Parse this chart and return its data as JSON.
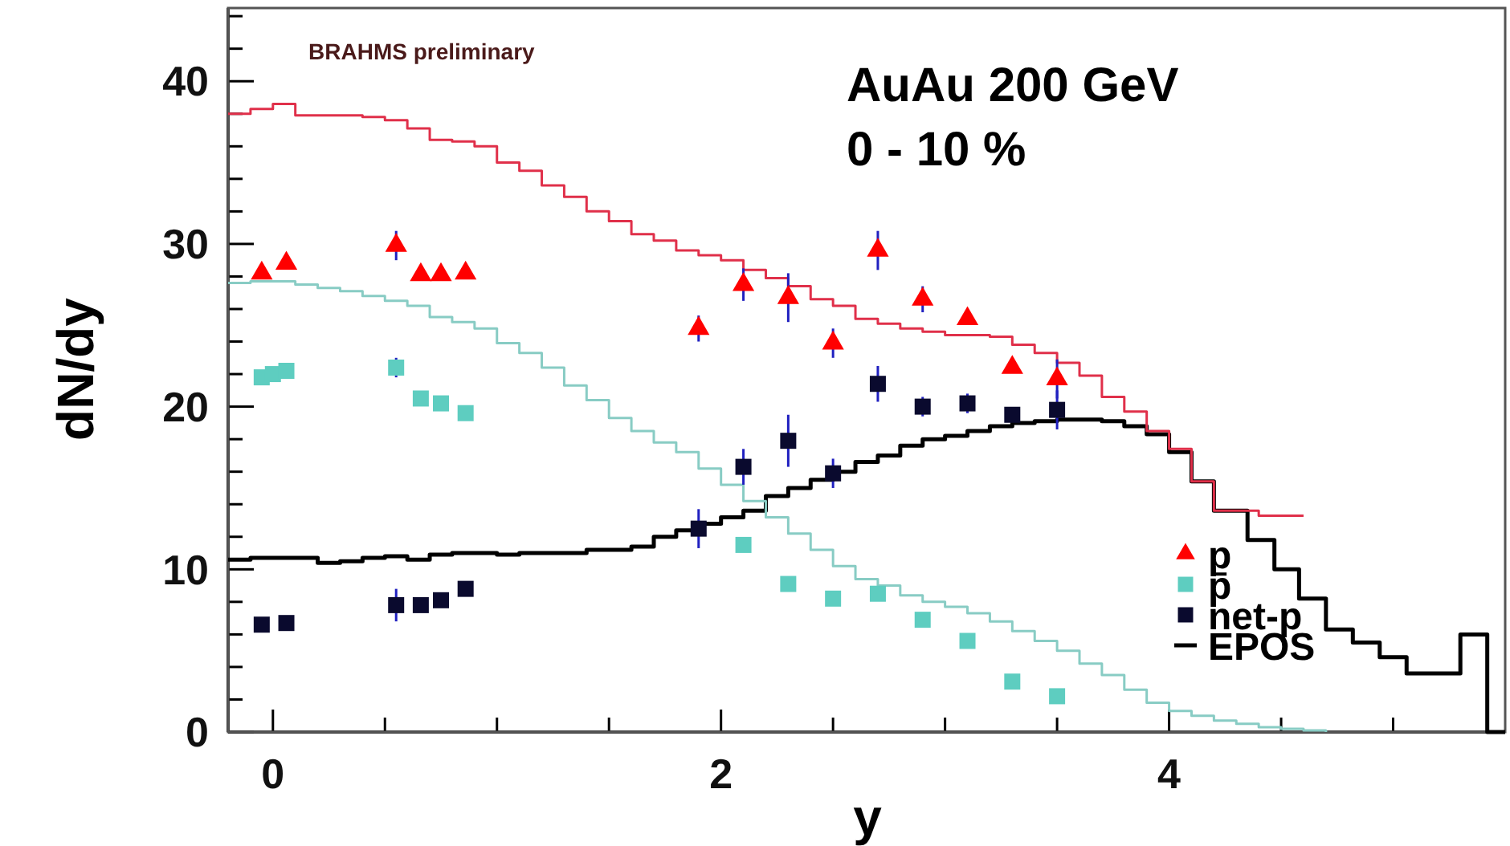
{
  "chart_data": {
    "type": "scatter",
    "xlabel": "y",
    "ylabel": "dN/dy",
    "annotations": [
      "BRAHMS preliminary",
      "AuAu 200 GeV",
      "0 - 10 %"
    ],
    "xlim": [
      -0.2,
      5.5
    ],
    "ylim": [
      0,
      44.5
    ],
    "xticks": [
      {
        "value": 0,
        "label": "0"
      },
      {
        "value": 0.5,
        "label": null
      },
      {
        "value": 1,
        "label": null
      },
      {
        "value": 1.5,
        "label": null
      },
      {
        "value": 2,
        "label": "2"
      },
      {
        "value": 2.5,
        "label": null
      },
      {
        "value": 3,
        "label": null
      },
      {
        "value": 3.5,
        "label": null
      },
      {
        "value": 4,
        "label": "4"
      },
      {
        "value": 4.5,
        "label": null
      },
      {
        "value": 5,
        "label": null
      }
    ],
    "yticks": [
      {
        "value": 0,
        "label": "0"
      },
      {
        "value": 2,
        "label": null
      },
      {
        "value": 4,
        "label": null
      },
      {
        "value": 6,
        "label": null
      },
      {
        "value": 8,
        "label": null
      },
      {
        "value": 10,
        "label": "10"
      },
      {
        "value": 12,
        "label": null
      },
      {
        "value": 14,
        "label": null
      },
      {
        "value": 16,
        "label": null
      },
      {
        "value": 18,
        "label": null
      },
      {
        "value": 20,
        "label": "20"
      },
      {
        "value": 22,
        "label": null
      },
      {
        "value": 24,
        "label": null
      },
      {
        "value": 26,
        "label": null
      },
      {
        "value": 28,
        "label": null
      },
      {
        "value": 30,
        "label": "30"
      },
      {
        "value": 32,
        "label": null
      },
      {
        "value": 34,
        "label": null
      },
      {
        "value": 36,
        "label": null
      },
      {
        "value": 38,
        "label": null
      },
      {
        "value": 40,
        "label": "40"
      },
      {
        "value": 42,
        "label": null
      },
      {
        "value": 44,
        "label": null
      }
    ],
    "legend": "bottom right",
    "grid": false,
    "series": [
      {
        "name": "p",
        "type": "scatter",
        "marker": "triangle",
        "color": "#ff0000",
        "x": [
          -0.05,
          0.06,
          0.55,
          0.66,
          0.75,
          0.86,
          1.9,
          2.1,
          2.3,
          2.5,
          2.7,
          2.9,
          3.1,
          3.3,
          3.5
        ],
        "values": [
          28.2,
          28.8,
          29.9,
          28.1,
          28.1,
          28.2,
          24.8,
          27.5,
          26.7,
          23.9,
          29.6,
          26.6,
          25.4,
          22.4,
          21.7
        ],
        "errors": [
          null,
          null,
          0.9,
          null,
          null,
          null,
          0.8,
          1.0,
          1.5,
          0.9,
          1.2,
          0.8,
          null,
          null,
          1.2
        ]
      },
      {
        "name": "p̄",
        "type": "scatter",
        "marker": "square",
        "color": "#5ecdc0",
        "x": [
          -0.05,
          0.0,
          0.06,
          0.55,
          0.66,
          0.75,
          0.86,
          2.1,
          2.3,
          2.5,
          2.7,
          2.9,
          3.1,
          3.3,
          3.5
        ],
        "values": [
          21.8,
          22.0,
          22.2,
          22.4,
          20.5,
          20.2,
          19.6,
          11.5,
          9.1,
          8.2,
          8.5,
          6.9,
          5.6,
          3.1,
          2.2
        ],
        "errors": [
          null,
          null,
          null,
          0.6,
          null,
          null,
          null,
          null,
          null,
          null,
          null,
          null,
          null,
          null,
          null
        ]
      },
      {
        "name": "net-p",
        "type": "scatter",
        "marker": "square",
        "color": "#0a0a2e",
        "x": [
          -0.05,
          0.06,
          0.55,
          0.66,
          0.75,
          0.86,
          1.9,
          2.1,
          2.3,
          2.5,
          2.7,
          2.9,
          3.1,
          3.3,
          3.5
        ],
        "values": [
          6.6,
          6.7,
          7.8,
          7.8,
          8.1,
          8.8,
          12.5,
          16.3,
          17.9,
          15.9,
          21.4,
          20.0,
          20.2,
          19.5,
          19.8
        ],
        "errors": [
          null,
          null,
          1.0,
          null,
          null,
          null,
          1.2,
          1.1,
          1.6,
          0.9,
          1.1,
          0.6,
          0.6,
          null,
          1.2
        ]
      },
      {
        "type": "step",
        "color": "#e0304a",
        "x": [
          -0.2,
          -0.1,
          0,
          0.1,
          0.2,
          0.3,
          0.4,
          0.5,
          0.6,
          0.7,
          0.8,
          0.9,
          1.0,
          1.1,
          1.2,
          1.3,
          1.4,
          1.5,
          1.6,
          1.7,
          1.8,
          1.9,
          2.0,
          2.1,
          2.2,
          2.3,
          2.4,
          2.5,
          2.6,
          2.7,
          2.8,
          2.9,
          3.0,
          3.1,
          3.2,
          3.3,
          3.4,
          3.5,
          3.6,
          3.7,
          3.8,
          3.9,
          4.0,
          4.1,
          4.2,
          4.3,
          4.4,
          4.5,
          4.6
        ],
        "values": [
          38.0,
          38.3,
          38.6,
          37.9,
          37.9,
          37.9,
          37.8,
          37.6,
          37.1,
          36.4,
          36.3,
          36.0,
          35.0,
          34.5,
          33.6,
          32.9,
          32.0,
          31.4,
          30.6,
          30.2,
          29.6,
          29.3,
          29.0,
          28.4,
          27.9,
          27.4,
          26.6,
          26.2,
          25.4,
          25.1,
          24.8,
          24.6,
          24.4,
          24.4,
          24.3,
          23.8,
          23.3,
          22.7,
          21.9,
          20.6,
          19.7,
          18.5,
          17.4,
          15.4,
          13.6,
          13.6,
          13.3,
          13.3,
          13.3
        ]
      },
      {
        "type": "step",
        "color": "#88ccc4",
        "x": [
          -0.2,
          -0.1,
          0,
          0.1,
          0.2,
          0.3,
          0.4,
          0.5,
          0.6,
          0.7,
          0.8,
          0.9,
          1.0,
          1.1,
          1.2,
          1.3,
          1.4,
          1.5,
          1.6,
          1.7,
          1.8,
          1.9,
          2.0,
          2.1,
          2.2,
          2.3,
          2.4,
          2.5,
          2.6,
          2.7,
          2.8,
          2.9,
          3.0,
          3.1,
          3.2,
          3.3,
          3.4,
          3.5,
          3.6,
          3.7,
          3.8,
          3.9,
          4.0,
          4.1,
          4.2,
          4.3,
          4.4,
          4.5,
          4.6,
          4.7
        ],
        "values": [
          27.6,
          27.7,
          27.7,
          27.5,
          27.3,
          27.1,
          26.8,
          26.5,
          26.2,
          25.5,
          25.2,
          24.8,
          23.9,
          23.3,
          22.4,
          21.3,
          20.4,
          19.3,
          18.5,
          17.8,
          17.2,
          16.2,
          15.2,
          14.2,
          13.2,
          12.2,
          11.2,
          10.2,
          9.4,
          9.0,
          8.4,
          8.0,
          7.7,
          7.3,
          6.8,
          6.2,
          5.6,
          5.0,
          4.2,
          3.5,
          2.6,
          1.8,
          1.3,
          1.0,
          0.7,
          0.5,
          0.3,
          0.2,
          0.1,
          0
        ]
      },
      {
        "name": "EPOS",
        "type": "step",
        "color": "#000000",
        "x": [
          -0.2,
          -0.1,
          0,
          0.1,
          0.2,
          0.3,
          0.4,
          0.5,
          0.6,
          0.7,
          0.8,
          0.9,
          1.0,
          1.1,
          1.2,
          1.3,
          1.4,
          1.5,
          1.6,
          1.7,
          1.8,
          1.9,
          2.0,
          2.1,
          2.2,
          2.3,
          2.4,
          2.5,
          2.6,
          2.7,
          2.8,
          2.9,
          3.0,
          3.1,
          3.2,
          3.3,
          3.4,
          3.5,
          3.6,
          3.7,
          3.8,
          3.9,
          4.0,
          4.1,
          4.2,
          4.35,
          4.47,
          4.58,
          4.7,
          4.82,
          4.94,
          5.06,
          5.18,
          5.3,
          5.42,
          5.5
        ],
        "values": [
          10.6,
          10.7,
          10.7,
          10.7,
          10.4,
          10.5,
          10.7,
          10.8,
          10.6,
          10.9,
          11.0,
          11.0,
          10.9,
          11.0,
          11.0,
          11.0,
          11.2,
          11.2,
          11.4,
          12.0,
          12.4,
          12.8,
          13.2,
          13.6,
          14.5,
          15.0,
          15.5,
          16.0,
          16.6,
          17.0,
          17.6,
          18.0,
          18.2,
          18.5,
          18.8,
          19.0,
          19.1,
          19.2,
          19.2,
          19.1,
          18.8,
          18.3,
          17.2,
          15.4,
          13.6,
          11.8,
          10.0,
          8.2,
          6.3,
          5.5,
          4.6,
          3.6,
          3.6,
          6.0,
          0,
          0
        ]
      }
    ]
  }
}
